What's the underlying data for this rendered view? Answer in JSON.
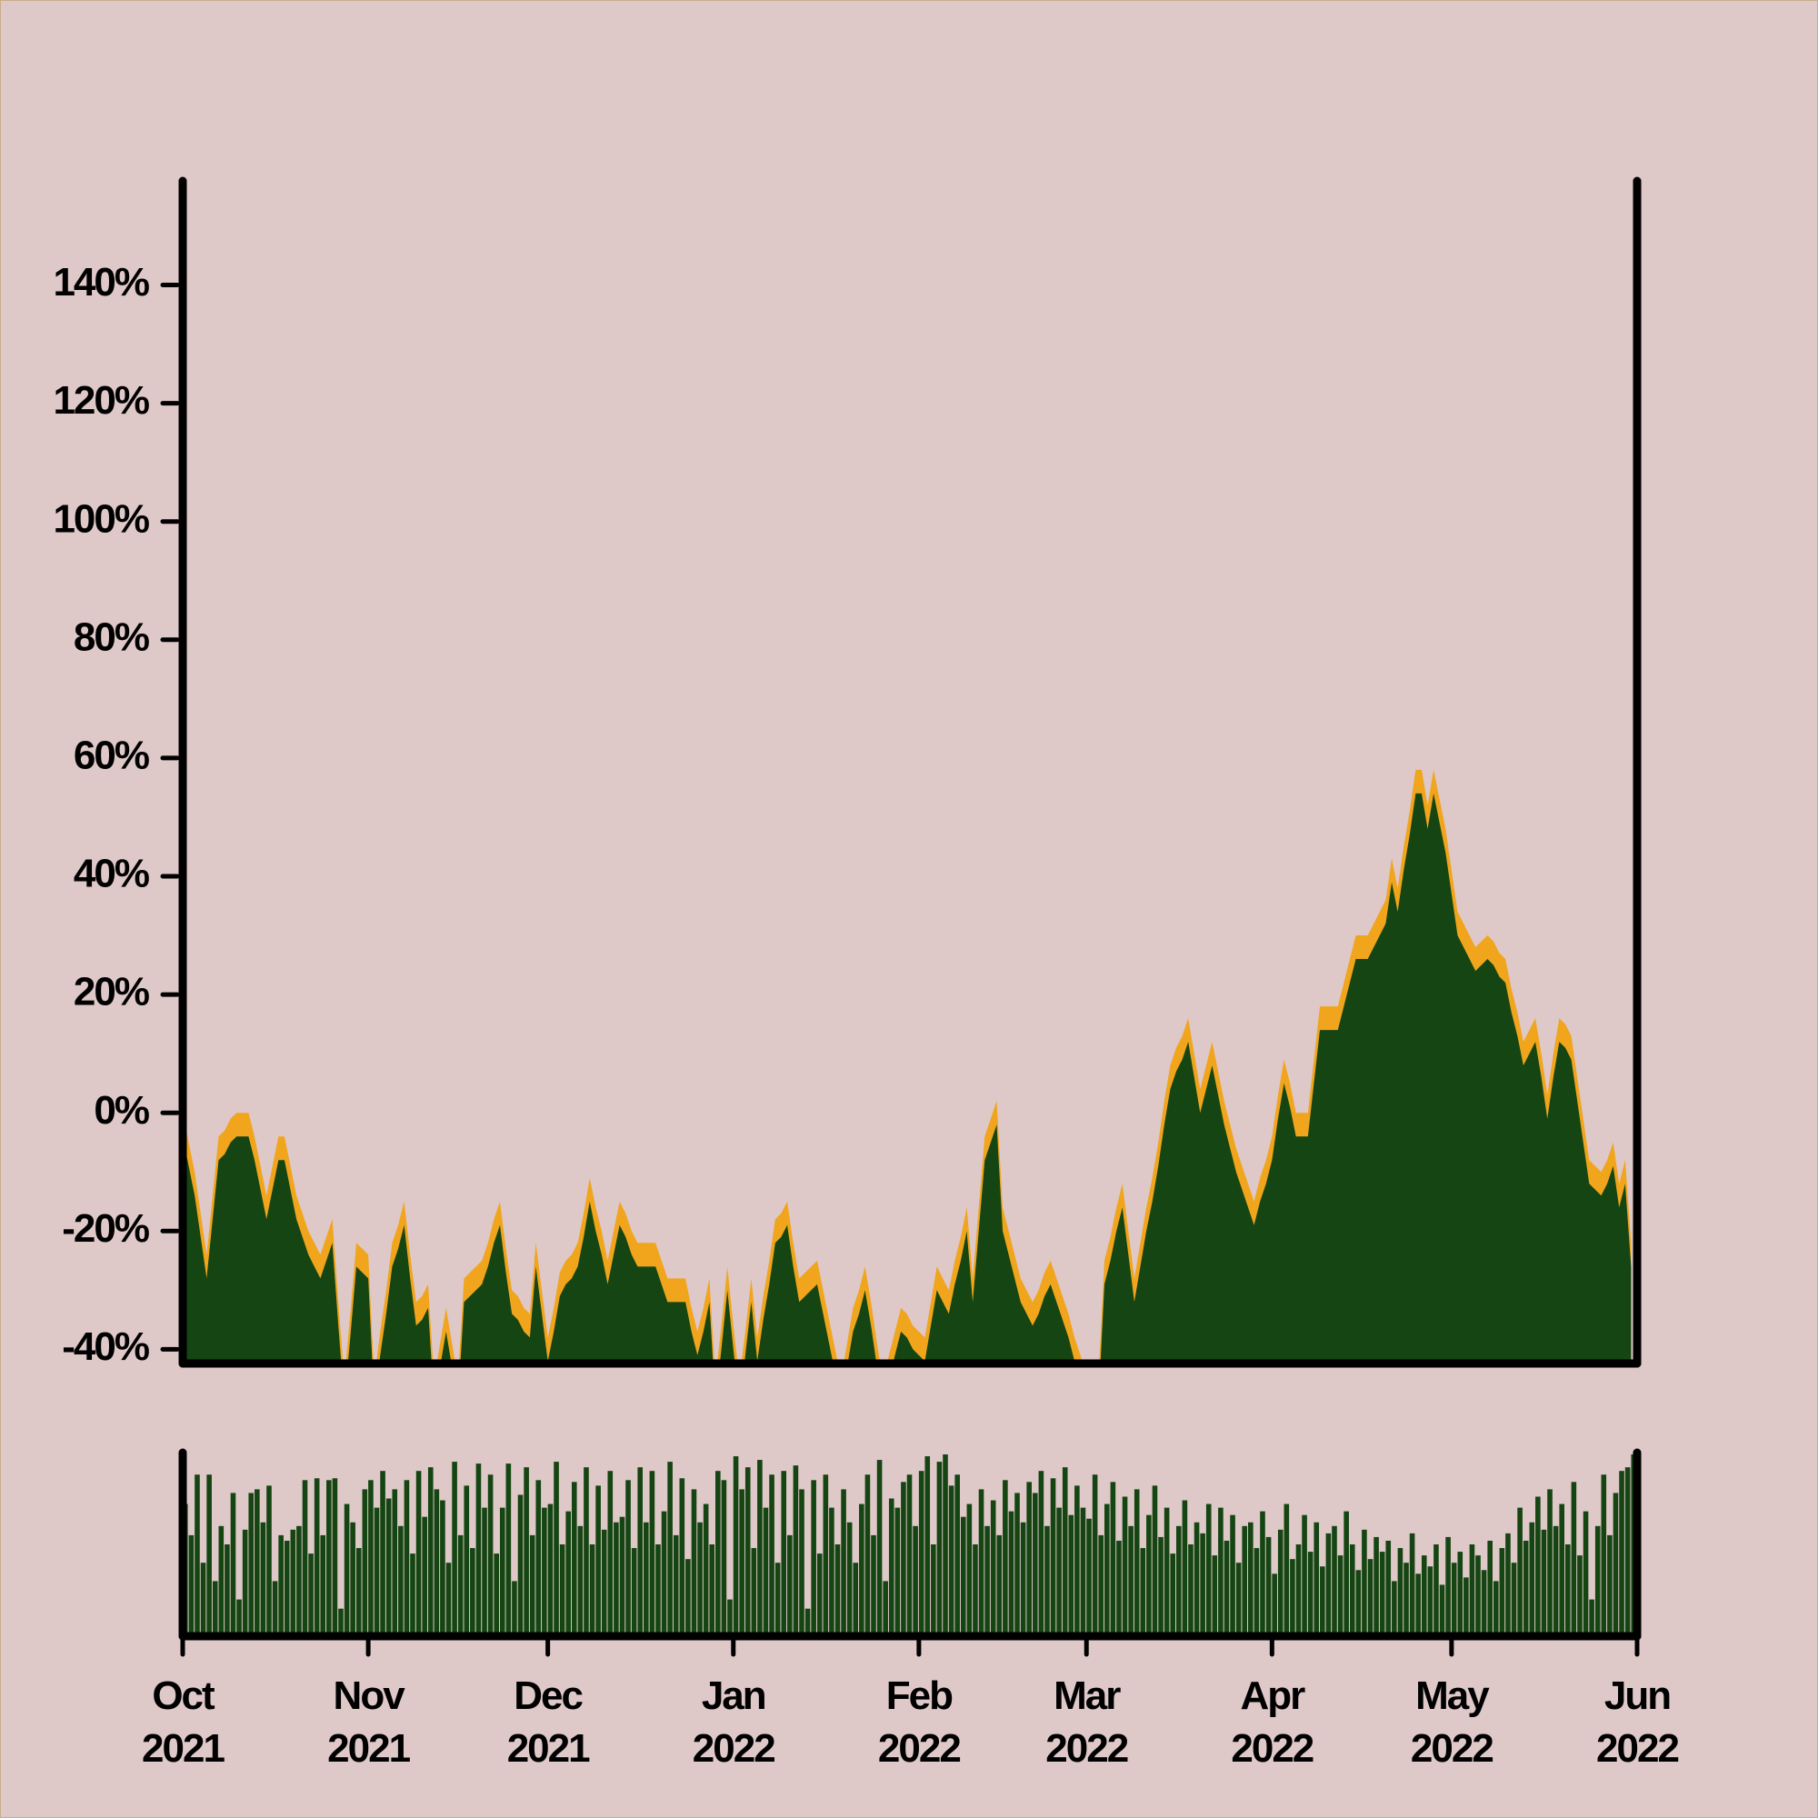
{
  "chart_data": [
    {
      "type": "area",
      "ylim": [
        -42.4,
        157.6
      ],
      "yticks": [
        {
          "value": -40,
          "label": "-40%"
        },
        {
          "value": -20,
          "label": "-20%"
        },
        {
          "value": 0,
          "label": "0%"
        },
        {
          "value": 20,
          "label": "20%"
        },
        {
          "value": 40,
          "label": "40%"
        },
        {
          "value": 60,
          "label": "60%"
        },
        {
          "value": 80,
          "label": "80%"
        },
        {
          "value": 100,
          "label": "100%"
        },
        {
          "value": 120,
          "label": "120%"
        },
        {
          "value": 140,
          "label": "140%"
        }
      ],
      "series": [
        {
          "color": "#f0a51c",
          "values": [
            0,
            -5,
            -10,
            -17,
            -24,
            -14,
            -4,
            -3,
            -1,
            0,
            0,
            0,
            -4,
            -9,
            -14,
            -9,
            -4,
            -4,
            -9,
            -14,
            -17,
            -20,
            -22,
            -24,
            -21,
            -18,
            -32,
            -45,
            -34,
            -22,
            -23,
            -24,
            -45,
            -37,
            -30,
            -22,
            -19,
            -15,
            -24,
            -32,
            -31,
            -29,
            -45,
            -39,
            -33,
            -39,
            -45,
            -28,
            -27,
            -26,
            -25,
            -22,
            -18,
            -15,
            -23,
            -30,
            -31,
            -33,
            -34,
            -22,
            -30,
            -38,
            -33,
            -27,
            -25,
            -24,
            -22,
            -17,
            -11,
            -16,
            -20,
            -25,
            -20,
            -15,
            -17,
            -20,
            -22,
            -22,
            -22,
            -22,
            -25,
            -28,
            -28,
            -28,
            -28,
            -33,
            -37,
            -33,
            -28,
            -45,
            -36,
            -26,
            -36,
            -45,
            -37,
            -28,
            -38,
            -31,
            -25,
            -18,
            -17,
            -15,
            -22,
            -28,
            -27,
            -26,
            -25,
            -30,
            -35,
            -40,
            -45,
            -39,
            -33,
            -30,
            -26,
            -32,
            -39,
            -45,
            -41,
            -37,
            -33,
            -34,
            -36,
            -37,
            -38,
            -32,
            -26,
            -28,
            -30,
            -25,
            -21,
            -16,
            -28,
            -16,
            -4,
            -1,
            2,
            -16,
            -20,
            -24,
            -28,
            -30,
            -32,
            -30,
            -27,
            -25,
            -28,
            -31,
            -34,
            -38,
            -41,
            -45,
            -45,
            -45,
            -25,
            -21,
            -16,
            -12,
            -20,
            -28,
            -22,
            -16,
            -11,
            -5,
            2,
            8,
            11,
            13,
            16,
            10,
            4,
            8,
            12,
            7,
            2,
            -2,
            -6,
            -9,
            -12,
            -15,
            -11,
            -8,
            -4,
            3,
            9,
            5,
            0,
            0,
            0,
            9,
            18,
            18,
            18,
            18,
            22,
            26,
            30,
            30,
            30,
            32,
            34,
            36,
            43,
            38,
            45,
            51,
            58,
            58,
            52,
            58,
            53,
            48,
            41,
            34,
            32,
            30,
            28,
            29,
            30,
            29,
            27,
            26,
            21,
            17,
            12,
            14,
            16,
            10,
            3,
            10,
            16,
            15,
            13,
            6,
            -1,
            -8,
            -9,
            -10,
            -8,
            -5,
            -12,
            -8,
            -22,
            null
          ]
        },
        {
          "color": "#154512",
          "values": [
            -4,
            -9,
            -14,
            -21,
            -28,
            -18,
            -8,
            -7,
            -5,
            -4,
            -4,
            -4,
            -8,
            -13,
            -18,
            -13,
            -8,
            -8,
            -13,
            -18,
            -21,
            -24,
            -26,
            -28,
            -25,
            -22,
            -36,
            -49,
            -38,
            -26,
            -27,
            -28,
            -49,
            -41,
            -34,
            -26,
            -23,
            -19,
            -28,
            -36,
            -35,
            -33,
            -49,
            -43,
            -37,
            -43,
            -49,
            -32,
            -31,
            -30,
            -29,
            -26,
            -22,
            -19,
            -27,
            -34,
            -35,
            -37,
            -38,
            -26,
            -34,
            -42,
            -37,
            -31,
            -29,
            -28,
            -26,
            -21,
            -15,
            -20,
            -24,
            -29,
            -24,
            -19,
            -21,
            -24,
            -26,
            -26,
            -26,
            -26,
            -29,
            -32,
            -32,
            -32,
            -32,
            -37,
            -41,
            -37,
            -32,
            -49,
            -40,
            -30,
            -40,
            -49,
            -41,
            -32,
            -42,
            -35,
            -29,
            -22,
            -21,
            -19,
            -26,
            -32,
            -31,
            -30,
            -29,
            -34,
            -39,
            -44,
            -49,
            -43,
            -37,
            -34,
            -30,
            -36,
            -43,
            -49,
            -45,
            -41,
            -37,
            -38,
            -40,
            -41,
            -42,
            -36,
            -30,
            -32,
            -34,
            -29,
            -25,
            -20,
            -32,
            -20,
            -8,
            -5,
            -2,
            -20,
            -24,
            -28,
            -32,
            -34,
            -36,
            -34,
            -31,
            -29,
            -32,
            -35,
            -38,
            -42,
            -45,
            -49,
            -49,
            -49,
            -29,
            -25,
            -20,
            -16,
            -24,
            -32,
            -26,
            -20,
            -15,
            -9,
            -2,
            4,
            7,
            9,
            12,
            6,
            0,
            4,
            8,
            3,
            -2,
            -6,
            -10,
            -13,
            -16,
            -19,
            -15,
            -12,
            -8,
            -1,
            5,
            1,
            -4,
            -4,
            -4,
            5,
            14,
            14,
            14,
            14,
            18,
            22,
            26,
            26,
            26,
            28,
            30,
            32,
            39,
            34,
            41,
            47,
            54,
            54,
            48,
            54,
            49,
            44,
            37,
            30,
            28,
            26,
            24,
            25,
            26,
            25,
            23,
            22,
            17,
            13,
            8,
            10,
            12,
            6,
            -1,
            6,
            12,
            11,
            9,
            2,
            -5,
            -12,
            -13,
            -14,
            -12,
            -9,
            -16,
            -12,
            -26,
            null
          ]
        }
      ]
    },
    {
      "type": "bar",
      "color": "#154512",
      "ylim": [
        0,
        100
      ],
      "categories": [
        "Oct\n2021",
        null,
        null,
        null,
        null,
        null,
        null,
        null,
        null,
        null,
        null,
        null,
        null,
        null,
        null,
        null,
        null,
        null,
        null,
        null,
        null,
        null,
        null,
        null,
        null,
        null,
        null,
        null,
        null,
        null,
        null,
        "Nov\n2021",
        null,
        null,
        null,
        null,
        null,
        null,
        null,
        null,
        null,
        null,
        null,
        null,
        null,
        null,
        null,
        null,
        null,
        null,
        null,
        null,
        null,
        null,
        null,
        null,
        null,
        null,
        null,
        null,
        null,
        "Dec\n2021",
        null,
        null,
        null,
        null,
        null,
        null,
        null,
        null,
        null,
        null,
        null,
        null,
        null,
        null,
        null,
        null,
        null,
        null,
        null,
        null,
        null,
        null,
        null,
        null,
        null,
        null,
        null,
        null,
        null,
        null,
        "Jan\n2022",
        null,
        null,
        null,
        null,
        null,
        null,
        null,
        null,
        null,
        null,
        null,
        null,
        null,
        null,
        null,
        null,
        null,
        null,
        null,
        null,
        null,
        null,
        null,
        null,
        null,
        null,
        null,
        null,
        null,
        null,
        "Feb\n2022",
        null,
        null,
        null,
        null,
        null,
        null,
        null,
        null,
        null,
        null,
        null,
        null,
        null,
        null,
        null,
        null,
        null,
        null,
        null,
        null,
        null,
        null,
        null,
        null,
        null,
        null,
        null,
        "Mar\n2022",
        null,
        null,
        null,
        null,
        null,
        null,
        null,
        null,
        null,
        null,
        null,
        null,
        null,
        null,
        null,
        null,
        null,
        null,
        null,
        null,
        null,
        null,
        null,
        null,
        null,
        null,
        null,
        null,
        null,
        null,
        "Apr\n2022",
        null,
        null,
        null,
        null,
        null,
        null,
        null,
        null,
        null,
        null,
        null,
        null,
        null,
        null,
        null,
        null,
        null,
        null,
        null,
        null,
        null,
        null,
        null,
        null,
        null,
        null,
        null,
        null,
        null,
        "May\n2022",
        null,
        null,
        null,
        null,
        null,
        null,
        null,
        null,
        null,
        null,
        null,
        null,
        null,
        null,
        null,
        null,
        null,
        null,
        null,
        null,
        null,
        null,
        null,
        null,
        null,
        null,
        null,
        null,
        null,
        null,
        "Jun\n2022"
      ],
      "values": [
        72,
        55,
        88,
        40,
        88,
        30,
        60,
        50,
        78,
        20,
        58,
        78,
        80,
        62,
        82,
        30,
        55,
        52,
        58,
        60,
        85,
        45,
        86,
        55,
        85,
        86,
        15,
        72,
        62,
        48,
        80,
        85,
        70,
        90,
        75,
        80,
        60,
        85,
        45,
        90,
        65,
        92,
        80,
        74,
        40,
        95,
        55,
        82,
        48,
        94,
        70,
        88,
        45,
        70,
        94,
        30,
        77,
        92,
        55,
        85,
        70,
        72,
        95,
        50,
        68,
        84,
        60,
        92,
        50,
        82,
        58,
        90,
        62,
        65,
        85,
        48,
        92,
        62,
        90,
        50,
        68,
        95,
        55,
        86,
        42,
        80,
        62,
        72,
        50,
        90,
        85,
        20,
        98,
        80,
        92,
        48,
        96,
        70,
        88,
        40,
        90,
        55,
        93,
        80,
        15,
        85,
        45,
        88,
        70,
        50,
        80,
        62,
        40,
        72,
        88,
        55,
        96,
        30,
        75,
        70,
        84,
        88,
        60,
        90,
        98,
        50,
        95,
        99,
        82,
        88,
        65,
        72,
        50,
        80,
        60,
        74,
        55,
        85,
        68,
        78,
        62,
        84,
        78,
        90,
        60,
        86,
        70,
        92,
        66,
        82,
        70,
        64,
        88,
        55,
        72,
        84,
        52,
        76,
        60,
        80,
        48,
        66,
        82,
        54,
        70,
        45,
        60,
        74,
        50,
        62,
        56,
        72,
        44,
        70,
        52,
        66,
        40,
        60,
        62,
        48,
        68,
        54,
        34,
        58,
        72,
        42,
        50,
        66,
        46,
        62,
        38,
        56,
        60,
        44,
        68,
        50,
        36,
        58,
        42,
        54,
        46,
        52,
        30,
        48,
        40,
        56,
        34,
        44,
        38,
        50,
        28,
        54,
        40,
        46,
        32,
        50,
        44,
        36,
        52,
        30,
        48,
        56,
        40,
        70,
        52,
        62,
        76,
        58,
        80,
        60,
        72,
        50,
        84,
        44,
        68,
        20,
        60,
        88,
        55,
        78,
        90,
        92,
        99,
        null
      ]
    }
  ]
}
